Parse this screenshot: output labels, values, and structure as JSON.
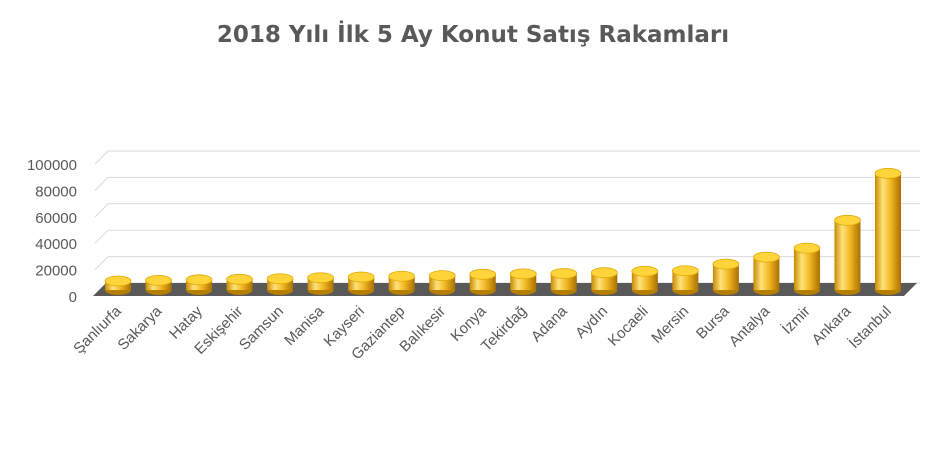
{
  "chart_data": {
    "type": "bar",
    "style": "3d-cylinder",
    "title": "2018 Yılı İlk 5 Ay Konut Satış Rakamları",
    "categories": [
      "Şanlıurfa",
      "Sakarya",
      "Hatay",
      "Eskişehir",
      "Samsun",
      "Manisa",
      "Kayseri",
      "Gaziantep",
      "Balıkesir",
      "Konya",
      "Tekirdağ",
      "Adana",
      "Aydın",
      "Kocaeli",
      "Mersin",
      "Bursa",
      "Antalya",
      "İzmir",
      "Ankara",
      "İstanbul"
    ],
    "values": [
      6800,
      7300,
      7700,
      8100,
      8500,
      9300,
      9800,
      10400,
      10900,
      11900,
      12200,
      12500,
      13100,
      14200,
      14600,
      19600,
      24900,
      31700,
      52800,
      88300
    ],
    "ylim": [
      0,
      100000
    ],
    "yticks": [
      "0",
      "20000",
      "40000",
      "60000",
      "80000",
      "100000"
    ],
    "grid": true,
    "legend": "none",
    "colors": {
      "bar_light": "#FFE27A",
      "bar_mid": "#F2B823",
      "bar_dark": "#B77F00",
      "top_face": "#FFD43B",
      "floor": "#595959",
      "grid": "#D9D9D9",
      "text": "#595959"
    }
  }
}
